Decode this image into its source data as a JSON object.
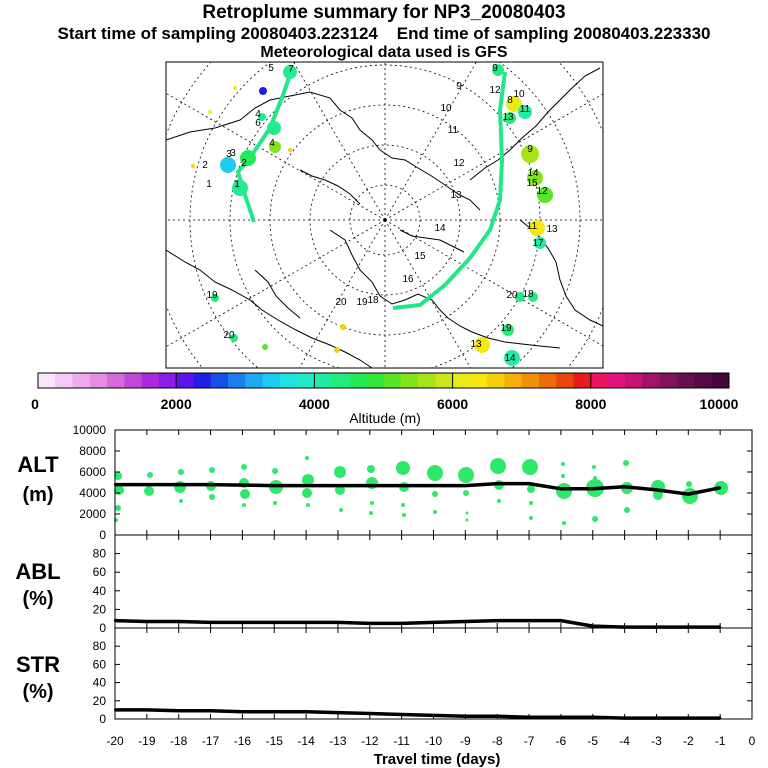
{
  "header": {
    "title": "Retroplume summary for NP3_20080403",
    "start_label": "Start time of sampling 20080403.223124",
    "end_label": "End time of sampling 20080403.223330",
    "met_label": "Meteorological data used is GFS"
  },
  "map": {
    "day_labels": [
      "1",
      "2",
      "3",
      "4",
      "5",
      "6",
      "7",
      "8",
      "9",
      "10",
      "11",
      "12",
      "13",
      "14",
      "15",
      "16",
      "17",
      "18",
      "19",
      "20"
    ]
  },
  "colorbar": {
    "min_label": "0",
    "tick_labels": [
      "2000",
      "4000",
      "6000",
      "8000",
      "10000"
    ],
    "ticks": [
      2000,
      4000,
      6000,
      8000
    ],
    "title": "Altitude (m)",
    "colors": [
      "#fbe5fb",
      "#f5c8f5",
      "#efaaef",
      "#e68ce6",
      "#d66ad9",
      "#c347d6",
      "#a82be0",
      "#8a1de8",
      "#5e13ed",
      "#1f1fe8",
      "#1750e6",
      "#1b7ff0",
      "#1ea9f2",
      "#1ecbee",
      "#1fe3e3",
      "#22ecc8",
      "#21eca3",
      "#22ec7e",
      "#23ea5a",
      "#31e83a",
      "#59e425",
      "#84e31c",
      "#a8e31a",
      "#c9e719",
      "#e7ec17",
      "#f7e80c",
      "#f6cf0b",
      "#f4b009",
      "#f08f08",
      "#ec6c09",
      "#ea450c",
      "#e81b1b",
      "#ea1461",
      "#e2127d",
      "#c41372",
      "#a01466",
      "#80145a",
      "#68104f",
      "#540c44",
      "#45083a"
    ]
  },
  "chart_data": [
    {
      "type": "line",
      "name": "ALT",
      "ylabel": "ALT",
      "yunit": "(m)",
      "ylim": [
        0,
        10000
      ],
      "yticks": [
        0,
        2000,
        4000,
        6000,
        8000,
        10000
      ],
      "ytick_labels": [
        "0",
        "2000",
        "4000",
        "6000",
        "8000",
        "10000"
      ],
      "x": [
        -20,
        -19,
        -18,
        -17,
        -16,
        -15,
        -14,
        -13,
        -12,
        -11,
        -10,
        -9,
        -8,
        -7,
        -6,
        -5,
        -4,
        -3,
        -2,
        -1
      ],
      "y": [
        4800,
        4800,
        4800,
        4800,
        4750,
        4700,
        4700,
        4700,
        4700,
        4700,
        4700,
        4700,
        4900,
        4900,
        4400,
        4400,
        4600,
        4300,
        3900,
        4500
      ]
    },
    {
      "type": "line",
      "name": "ABL",
      "ylabel": "ABL",
      "yunit": "(%)",
      "ylim": [
        0,
        100
      ],
      "yticks": [
        0,
        20,
        40,
        60,
        80
      ],
      "ytick_labels": [
        "0",
        "20",
        "40",
        "60",
        "80"
      ],
      "x": [
        -20,
        -19,
        -18,
        -17,
        -16,
        -15,
        -14,
        -13,
        -12,
        -11,
        -10,
        -9,
        -8,
        -7,
        -6,
        -5,
        -4,
        -3,
        -2,
        -1
      ],
      "y": [
        8,
        7,
        7,
        6,
        6,
        6,
        6,
        6,
        5,
        5,
        6,
        7,
        8,
        8,
        8,
        2,
        1,
        1,
        1,
        1
      ]
    },
    {
      "type": "line",
      "name": "STR",
      "ylabel": "STR",
      "yunit": "(%)",
      "ylim": [
        0,
        100
      ],
      "yticks": [
        0,
        20,
        40,
        60,
        80
      ],
      "ytick_labels": [
        "0",
        "20",
        "40",
        "60",
        "80"
      ],
      "x": [
        -20,
        -19,
        -18,
        -17,
        -16,
        -15,
        -14,
        -13,
        -12,
        -11,
        -10,
        -9,
        -8,
        -7,
        -6,
        -5,
        -4,
        -3,
        -2,
        -1
      ],
      "y": [
        10,
        10,
        9,
        9,
        8,
        8,
        8,
        7,
        6,
        5,
        4,
        3,
        3,
        2,
        2,
        2,
        1,
        1,
        1,
        1
      ]
    }
  ],
  "xaxis": {
    "label": "Travel time (days)",
    "xlim": [
      -20,
      0
    ],
    "ticks": [
      -20,
      -19,
      -18,
      -17,
      -16,
      -15,
      -14,
      -13,
      -12,
      -11,
      -10,
      -9,
      -8,
      -7,
      -6,
      -5,
      -4,
      -3,
      -2,
      -1,
      0
    ],
    "tick_labels": [
      "-20",
      "-19",
      "-18",
      "-17",
      "-16",
      "-15",
      "-14",
      "-13",
      "-12",
      "-11",
      "-10",
      "-9",
      "-8",
      "-7",
      "-6",
      "-5",
      "-4",
      "-3",
      "-2",
      "-1",
      "0"
    ]
  }
}
